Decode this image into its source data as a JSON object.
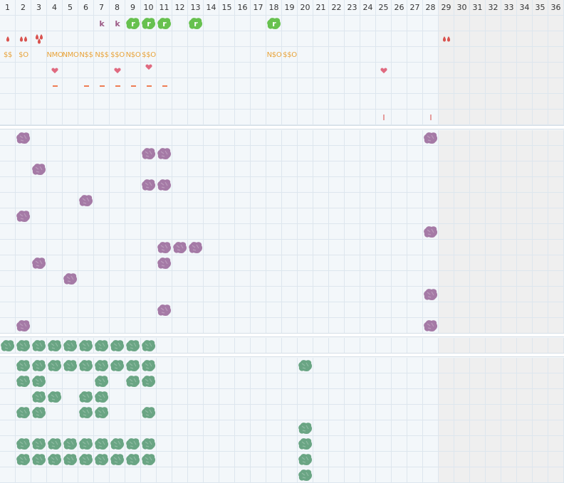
{
  "columns": [
    "1",
    "2",
    "3",
    "4",
    "5",
    "6",
    "7",
    "8",
    "9",
    "10",
    "11",
    "12",
    "13",
    "14",
    "15",
    "16",
    "17",
    "18",
    "19",
    "20",
    "21",
    "22",
    "23",
    "24",
    "25",
    "26",
    "27",
    "28",
    "29",
    "30",
    "31",
    "32",
    "33",
    "34",
    "35",
    "36"
  ],
  "colors": {
    "purple_blob": "#a57aa6",
    "green_blob": "#6aa584",
    "bright_green": "#67c14f",
    "drop_red": "#d9534f",
    "heart_pink": "#e06a80",
    "text_orange": "#e8a33a",
    "dash_orange": "#ee7d54",
    "k_purple": "#9c5a86",
    "shaded": "#efefef"
  },
  "header_rows": {
    "row1": {
      "k_marks": [
        {
          "col": 7,
          "text": "k"
        },
        {
          "col": 8,
          "text": "k"
        }
      ],
      "badges": [
        {
          "col": 9,
          "text": "r"
        },
        {
          "col": 10,
          "text": "r"
        },
        {
          "col": 11,
          "text": "r"
        },
        {
          "col": 13,
          "text": "r"
        },
        {
          "col": 18,
          "text": "r"
        }
      ]
    },
    "row2": {
      "drops": [
        {
          "col": 1,
          "count": 1
        },
        {
          "col": 2,
          "count": 2
        },
        {
          "col": 3,
          "count": 3
        },
        {
          "col": 29,
          "count": 2
        }
      ]
    },
    "row3": {
      "labels": [
        {
          "col": 1,
          "text": "$$"
        },
        {
          "col": 2,
          "text": "$O"
        },
        {
          "col": 4,
          "text": "NMO"
        },
        {
          "col": 5,
          "text": "NMO"
        },
        {
          "col": 6,
          "text": "N$$"
        },
        {
          "col": 7,
          "text": "N$$"
        },
        {
          "col": 8,
          "text": "$$O"
        },
        {
          "col": 9,
          "text": "N$O"
        },
        {
          "col": 10,
          "text": "$$O"
        },
        {
          "col": 18,
          "text": "N$O"
        },
        {
          "col": 19,
          "text": "$$O"
        }
      ]
    },
    "row4": {
      "hearts": [
        4,
        8,
        10,
        25
      ]
    },
    "row5": {
      "dashes": [
        4,
        6,
        7,
        8,
        9,
        10,
        11
      ]
    },
    "row7": {
      "bars": [
        {
          "col": 25,
          "text": "I"
        },
        {
          "col": 28,
          "text": "I"
        }
      ]
    }
  },
  "purple_section": {
    "blobs": [
      [
        2,
        28
      ],
      [
        10,
        11
      ],
      [
        3
      ],
      [
        10,
        11
      ],
      [
        6
      ],
      [
        2
      ],
      [
        28
      ],
      [
        11,
        12,
        13
      ],
      [
        3,
        11
      ],
      [
        5
      ],
      [
        28
      ],
      [
        11
      ],
      [
        2,
        28
      ]
    ]
  },
  "green_single": {
    "blobs": [
      1,
      2,
      3,
      4,
      5,
      6,
      7,
      8,
      9,
      10
    ]
  },
  "green_section": {
    "blobs": [
      [
        2,
        3,
        4,
        5,
        6,
        7,
        8,
        9,
        10,
        20
      ],
      [
        2,
        3,
        7,
        9,
        10
      ],
      [
        3,
        4,
        6,
        7
      ],
      [
        2,
        3,
        6,
        7,
        10
      ],
      [
        20
      ],
      [
        2,
        3,
        4,
        5,
        6,
        7,
        8,
        9,
        10,
        20
      ],
      [
        2,
        3,
        4,
        5,
        6,
        7,
        8,
        9,
        10,
        20
      ],
      [
        20
      ]
    ]
  }
}
